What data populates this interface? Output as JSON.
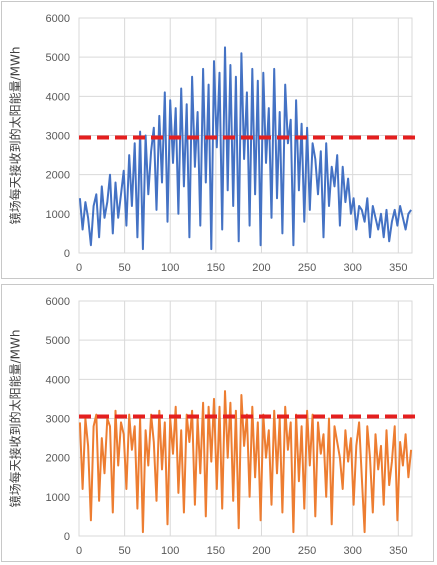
{
  "chart_data": [
    {
      "type": "line",
      "title": "",
      "ylabel": "镜场每天接收到的太阳能量/MWh",
      "xlabel": "",
      "xlim": [
        0,
        365
      ],
      "ylim": [
        0,
        6000
      ],
      "xticks": [
        0,
        50,
        100,
        150,
        200,
        250,
        300,
        350
      ],
      "yticks": [
        0,
        1000,
        2000,
        3000,
        4000,
        5000,
        6000
      ],
      "grid": true,
      "line_color": "#4472c4",
      "threshold": {
        "value": 2950,
        "color": "#e41f1f",
        "style": "dashed"
      },
      "series": [
        {
          "x": [
            1,
            4,
            7,
            10,
            13,
            16,
            19,
            22,
            25,
            28,
            31,
            34,
            37,
            40,
            43,
            46,
            49,
            52,
            55,
            58,
            61,
            64,
            67,
            70,
            73,
            76,
            79,
            82,
            85,
            88,
            91,
            94,
            97,
            100,
            103,
            106,
            109,
            112,
            115,
            118,
            121,
            124,
            127,
            130,
            133,
            136,
            139,
            142,
            145,
            148,
            151,
            154,
            157,
            160,
            163,
            166,
            169,
            172,
            175,
            178,
            181,
            184,
            187,
            190,
            193,
            196,
            199,
            202,
            205,
            208,
            211,
            214,
            217,
            220,
            223,
            226,
            229,
            232,
            235,
            238,
            241,
            244,
            247,
            250,
            253,
            256,
            259,
            262,
            265,
            268,
            271,
            274,
            277,
            280,
            283,
            286,
            289,
            292,
            295,
            298,
            301,
            304,
            307,
            310,
            313,
            316,
            319,
            322,
            325,
            328,
            331,
            334,
            337,
            340,
            343,
            346,
            349,
            352,
            355,
            358,
            361,
            364
          ],
          "values": [
            1400,
            600,
            1300,
            900,
            200,
            1200,
            1500,
            400,
            1700,
            900,
            1300,
            2000,
            500,
            1800,
            900,
            1500,
            2100,
            700,
            2500,
            1200,
            2800,
            400,
            3100,
            100,
            3000,
            1500,
            2600,
            3200,
            1100,
            3500,
            1800,
            4100,
            800,
            3900,
            2300,
            3700,
            1000,
            4200,
            1700,
            3800,
            400,
            4500,
            2200,
            3600,
            700,
            4700,
            1800,
            4300,
            100,
            4900,
            2700,
            4600,
            600,
            5250,
            1600,
            4800,
            1200,
            4500,
            300,
            5100,
            2400,
            4100,
            700,
            4700,
            1500,
            4400,
            200,
            4600,
            2300,
            3700,
            900,
            4700,
            1400,
            3600,
            500,
            4300,
            2800,
            3400,
            200,
            3900,
            1600,
            3300,
            800,
            3200,
            1100,
            2800,
            2400,
            1500,
            2600,
            400,
            2800,
            1200,
            2200,
            1700,
            2500,
            700,
            2200,
            1300,
            1900,
            1000,
            1400,
            600,
            1200,
            1100,
            800,
            1400,
            400,
            1200,
            900,
            600,
            1000,
            400,
            1100,
            300,
            800,
            1100,
            700,
            1200,
            900,
            600,
            1000,
            1100
          ]
        }
      ]
    },
    {
      "type": "line",
      "title": "",
      "ylabel": "镜场每天接收到的太阳能量/MWh",
      "xlabel": "",
      "xlim": [
        0,
        365
      ],
      "ylim": [
        0,
        6000
      ],
      "xticks": [
        0,
        50,
        100,
        150,
        200,
        250,
        300,
        350
      ],
      "yticks": [
        0,
        1000,
        2000,
        3000,
        4000,
        5000,
        6000
      ],
      "grid": true,
      "line_color": "#ed7d31",
      "threshold": {
        "value": 3050,
        "color": "#e41f1f",
        "style": "dashed"
      },
      "series": [
        {
          "x": [
            1,
            4,
            7,
            10,
            13,
            16,
            19,
            22,
            25,
            28,
            31,
            34,
            37,
            40,
            43,
            46,
            49,
            52,
            55,
            58,
            61,
            64,
            67,
            70,
            73,
            76,
            79,
            82,
            85,
            88,
            91,
            94,
            97,
            100,
            103,
            106,
            109,
            112,
            115,
            118,
            121,
            124,
            127,
            130,
            133,
            136,
            139,
            142,
            145,
            148,
            151,
            154,
            157,
            160,
            163,
            166,
            169,
            172,
            175,
            178,
            181,
            184,
            187,
            190,
            193,
            196,
            199,
            202,
            205,
            208,
            211,
            214,
            217,
            220,
            223,
            226,
            229,
            232,
            235,
            238,
            241,
            244,
            247,
            250,
            253,
            256,
            259,
            262,
            265,
            268,
            271,
            274,
            277,
            280,
            283,
            286,
            289,
            292,
            295,
            298,
            301,
            304,
            307,
            310,
            313,
            316,
            319,
            322,
            325,
            328,
            331,
            334,
            337,
            340,
            343,
            346,
            349,
            352,
            355,
            358,
            361,
            364
          ],
          "values": [
            2900,
            1200,
            3000,
            2300,
            400,
            2800,
            3100,
            900,
            2500,
            1600,
            3000,
            2800,
            600,
            3200,
            1800,
            2900,
            2600,
            1200,
            3100,
            2200,
            2800,
            700,
            3000,
            100,
            2700,
            1800,
            3100,
            2400,
            900,
            3200,
            1700,
            2900,
            300,
            3000,
            2100,
            3300,
            1100,
            2700,
            600,
            3100,
            2400,
            3200,
            800,
            3000,
            1600,
            3400,
            500,
            3300,
            1900,
            3500,
            1200,
            3300,
            700,
            3700,
            2000,
            3400,
            900,
            3200,
            200,
            3600,
            2300,
            3100,
            1000,
            3300,
            1500,
            2900,
            400,
            3100,
            2000,
            2700,
            800,
            3200,
            1600,
            3000,
            600,
            3300,
            2200,
            2900,
            100,
            3100,
            1400,
            2800,
            700,
            3200,
            1800,
            3100,
            500,
            2900,
            2100,
            2600,
            1000,
            3000,
            300,
            2800,
            2400,
            2000,
            1200,
            2700,
            1900,
            2500,
            800,
            2300,
            2900,
            1500,
            100,
            2800,
            2000,
            600,
            2600,
            1700,
            2300,
            800,
            2700,
            1300,
            1900,
            2800,
            400,
            2400,
            1800,
            2600,
            1500,
            2200
          ]
        }
      ]
    }
  ]
}
